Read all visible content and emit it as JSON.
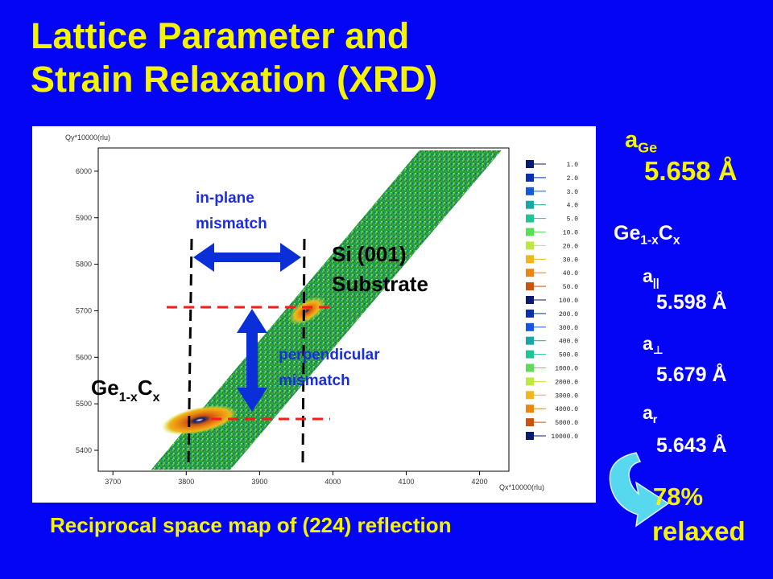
{
  "title": {
    "line1": "Lattice Parameter and",
    "line2": "Strain Relaxation (XRD)"
  },
  "caption": "Reciprocal space map of (224) reflection",
  "chart_data": {
    "type": "heatmap",
    "xlabel": "Qx*10000(rlu)",
    "ylabel": "Qy*10000(rlu)",
    "xlim": [
      3680,
      4240
    ],
    "ylim": [
      5355,
      6050
    ],
    "x_ticks": [
      3700,
      3800,
      3900,
      4000,
      4100,
      4200
    ],
    "y_ticks": [
      5400,
      5500,
      5600,
      5700,
      5800,
      5900,
      6000
    ],
    "legend_levels": [
      "1.0",
      "2.0",
      "3.0",
      "4.0",
      "5.0",
      "10.0",
      "20.0",
      "30.0",
      "40.0",
      "50.0",
      "100.0",
      "200.0",
      "300.0",
      "400.0",
      "500.0",
      "1000.0",
      "2000.0",
      "3000.0",
      "4000.0",
      "5000.0",
      "10000.0"
    ],
    "legend_colors": [
      "#0a1a6e",
      "#0a2fb0",
      "#1656dc",
      "#1aa6a6",
      "#22c497",
      "#5ade5a",
      "#bcea3c",
      "#f1b61a",
      "#e98612",
      "#c8540e",
      "#0a1a6e",
      "#0a2fb0",
      "#1656dc",
      "#1aa6a6",
      "#22c497",
      "#5ade5a",
      "#bcea3c",
      "#f1b61a",
      "#e98612",
      "#c8540e",
      "#0a1a6e"
    ],
    "peaks": [
      {
        "label": "Si (001) Substrate",
        "qx": 3965,
        "qy": 5700
      },
      {
        "label": "Ge1-xCx",
        "qx": 3818,
        "qy": 5465
      }
    ],
    "annotations": [
      "in-plane mismatch",
      "perpendicular mismatch"
    ],
    "labels": {
      "inplane_1": "in-plane",
      "inplane_2": "mismatch",
      "perp_1": "perpendicular",
      "perp_2": "mismatch",
      "si_1": "Si (001)",
      "si_2": "Substrate",
      "ge_base": "Ge",
      "ge_sub": "1-x",
      "c_base": "C",
      "c_sub": "x"
    }
  },
  "side": {
    "a_ge_label": "a",
    "a_ge_sub": "Ge",
    "a_ge_value": "5.658 Å",
    "alloy_ge": "Ge",
    "alloy_sub1": "1-x",
    "alloy_c": "C",
    "alloy_sub2": "x",
    "a_par_label": "a",
    "a_par_sub": "||",
    "a_par_value": "5.598 Å",
    "a_perp_label": "a",
    "a_perp_sub": "⊥",
    "a_perp_value": "5.679 Å",
    "a_r_label": "a",
    "a_r_sub": "r",
    "a_r_value": "5.643 Å",
    "relaxed_pct": "78%",
    "relaxed_word": "relaxed"
  }
}
